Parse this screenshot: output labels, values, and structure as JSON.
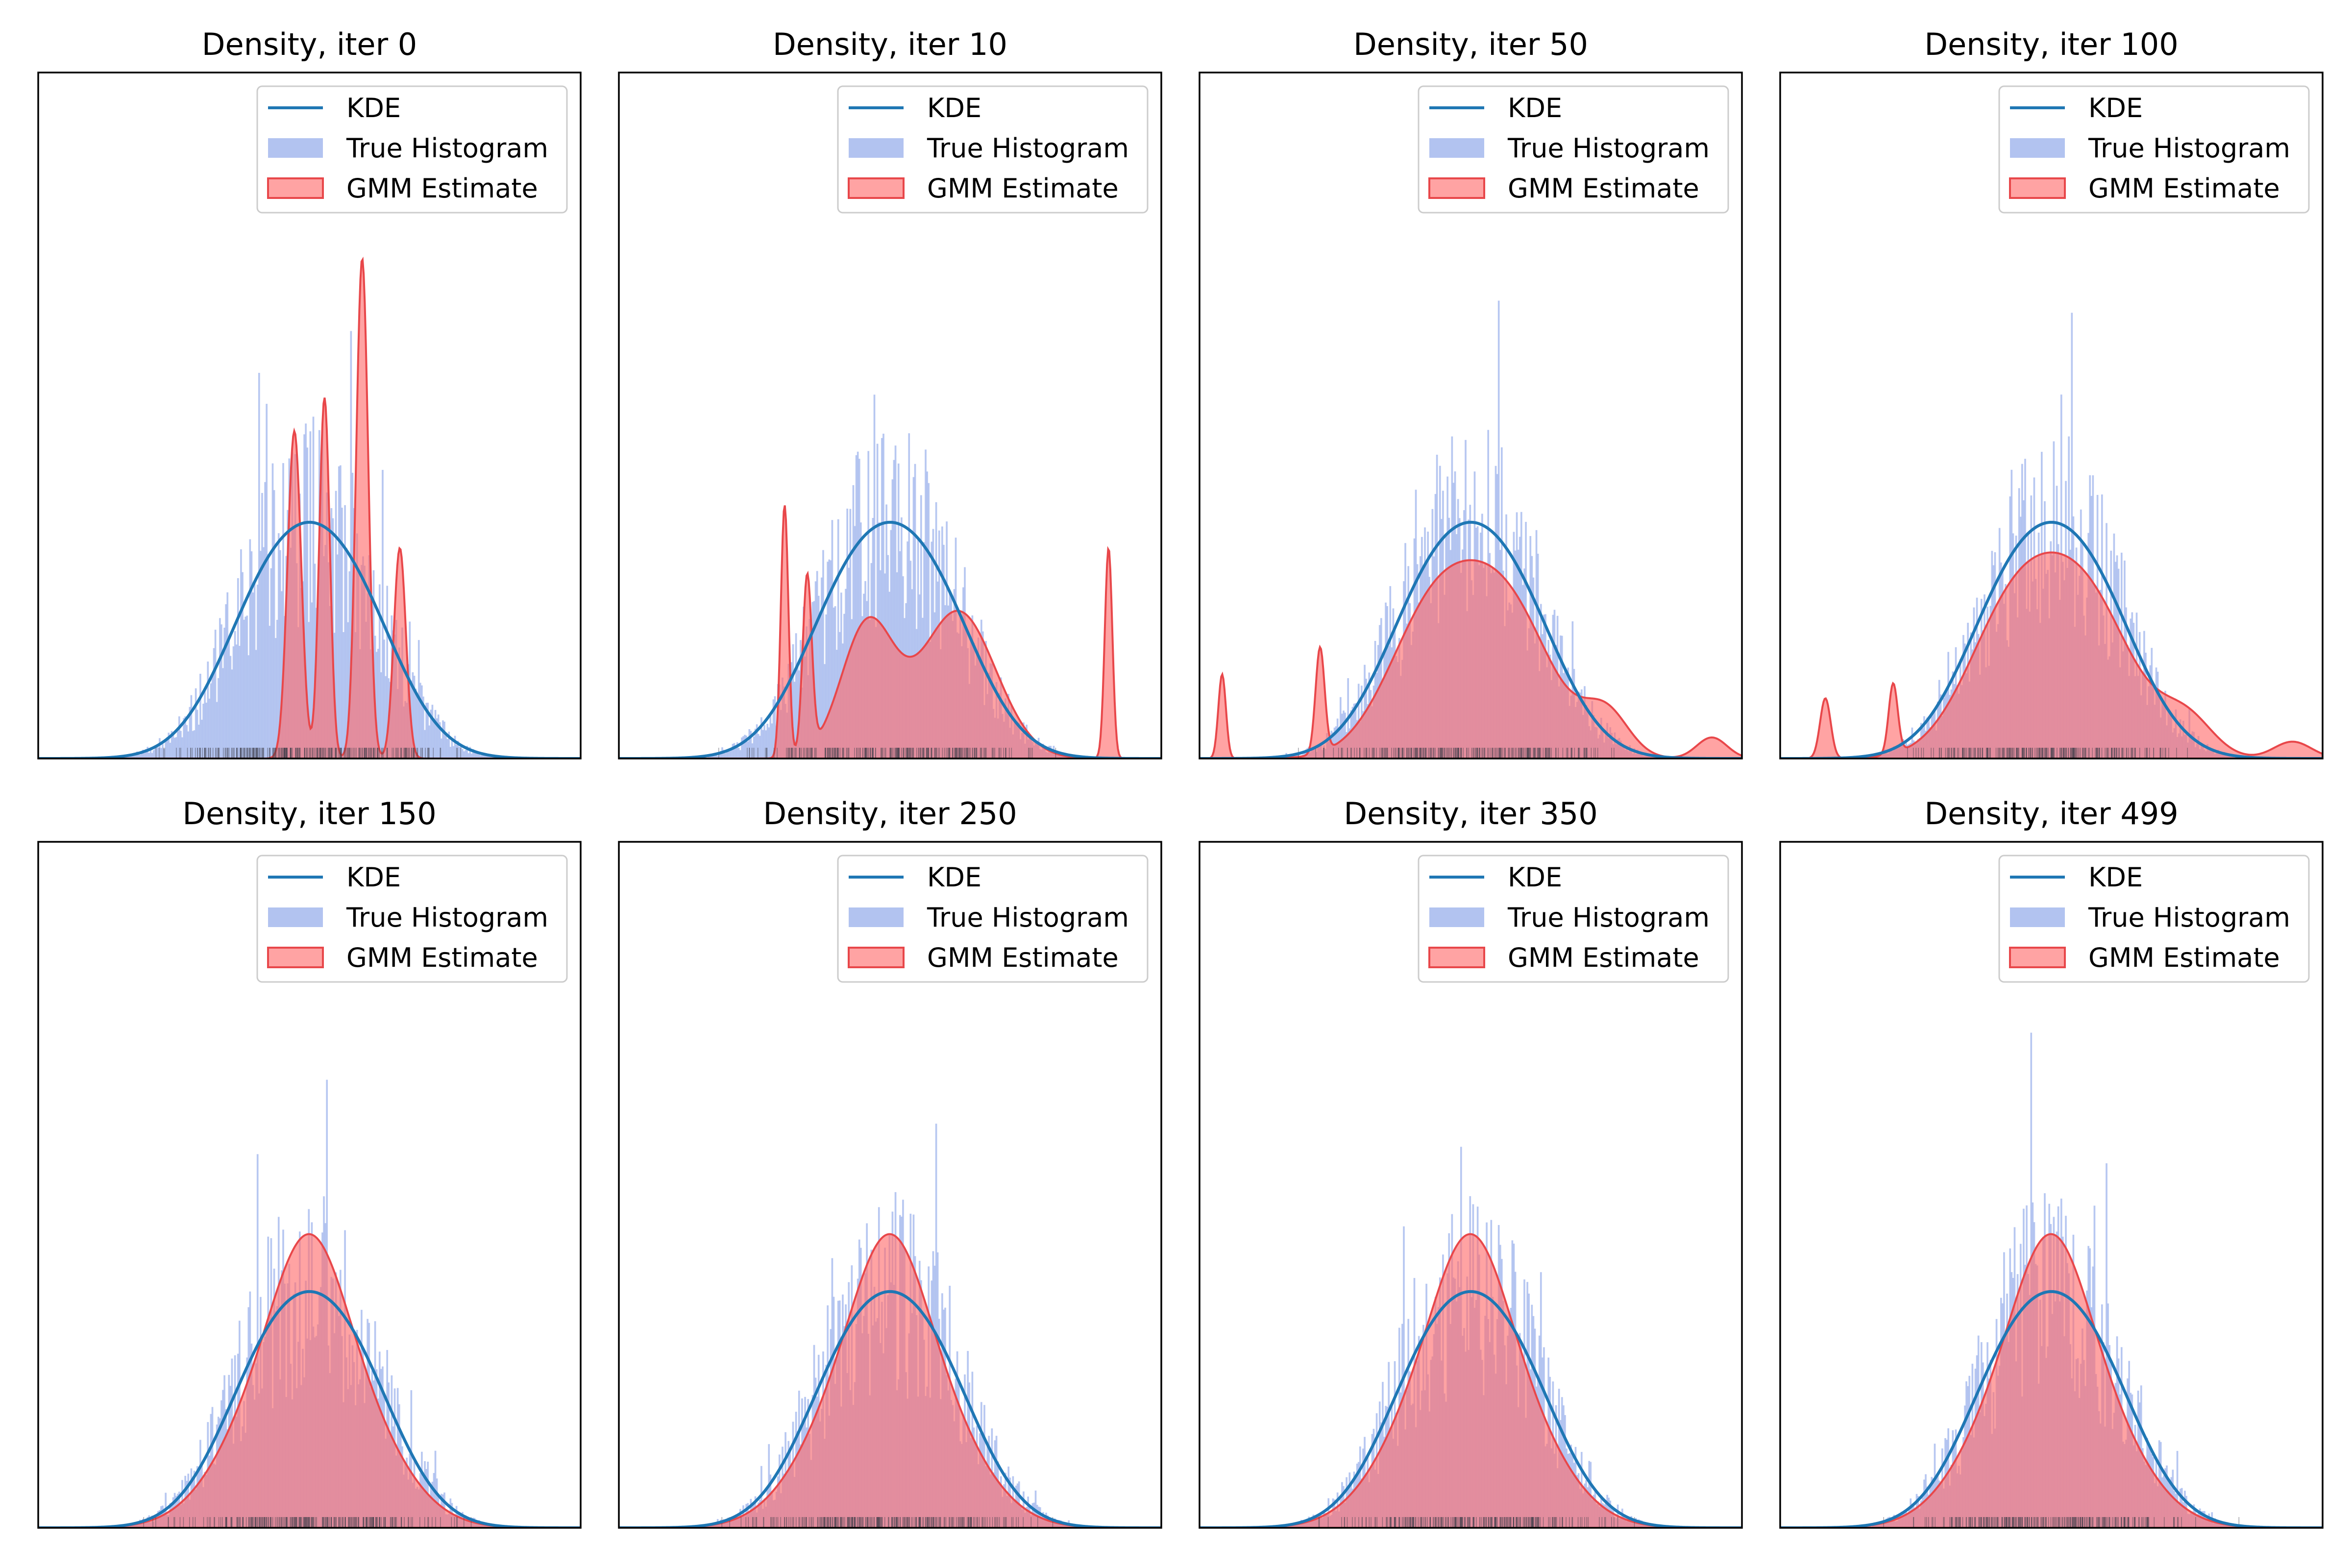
{
  "figure": {
    "colors": {
      "kde": "#1f77b4",
      "histogram": "#9fb4ec",
      "gmm": "#ff6b6b",
      "gmm_edge": "#e8474a",
      "rug": "#3d3d4a",
      "frame": "#000000"
    }
  },
  "legend": {
    "kde_label": "KDE",
    "hist_label": "True Histogram",
    "gmm_label": "GMM Estimate"
  },
  "chart_data": [
    {
      "type": "area",
      "title": "Density, iter 0",
      "xlim": [
        -3.6,
        3.6
      ],
      "ylim": [
        0,
        1.3
      ],
      "kde": {
        "mu": [
          -0.5,
          0.5
        ],
        "sigma": [
          0.68,
          0.68
        ],
        "w": [
          0.5,
          0.5
        ],
        "tail_sigma": 1.6,
        "tail_w": 0.0
      },
      "gmm": {
        "mu": [
          -0.2,
          0.2,
          0.7,
          1.2
        ],
        "sigma": [
          0.09,
          0.07,
          0.08,
          0.08
        ],
        "w": [
          0.14,
          0.12,
          0.19,
          0.08
        ]
      }
    },
    {
      "type": "area",
      "title": "Density, iter 10",
      "xlim": [
        -3.6,
        3.6
      ],
      "ylim": [
        0,
        1.3
      ],
      "kde": {
        "mu": [
          -0.5,
          0.5
        ],
        "sigma": [
          0.68,
          0.68
        ],
        "w": [
          0.5,
          0.5
        ],
        "tail_sigma": 1.6,
        "tail_w": 0.0
      },
      "gmm": {
        "mu": [
          -1.4,
          -1.1,
          -0.3,
          0.9,
          2.9
        ],
        "sigma": [
          0.05,
          0.06,
          0.35,
          0.5,
          0.05
        ],
        "w": [
          0.06,
          0.05,
          0.22,
          0.35,
          0.05
        ]
      }
    },
    {
      "type": "area",
      "title": "Density, iter 50",
      "xlim": [
        -3.6,
        3.6
      ],
      "ylim": [
        0,
        1.3
      ],
      "kde": {
        "mu": [
          -0.5,
          0.5
        ],
        "sigma": [
          0.68,
          0.68
        ],
        "w": [
          0.5,
          0.5
        ],
        "tail_sigma": 1.6,
        "tail_w": 0.0
      },
      "gmm": {
        "mu": [
          -3.3,
          -2.0,
          -0.5,
          0.5,
          1.8,
          3.2
        ],
        "sigma": [
          0.05,
          0.06,
          0.6,
          0.6,
          0.3,
          0.2
        ],
        "w": [
          0.02,
          0.03,
          0.4,
          0.4,
          0.06,
          0.02
        ]
      }
    },
    {
      "type": "area",
      "title": "Density, iter 100",
      "xlim": [
        -3.6,
        3.6
      ],
      "ylim": [
        0,
        1.3
      ],
      "kde": {
        "mu": [
          -0.5,
          0.5
        ],
        "sigma": [
          0.68,
          0.68
        ],
        "w": [
          0.5,
          0.5
        ],
        "tail_sigma": 1.6,
        "tail_w": 0.0
      },
      "gmm": {
        "mu": [
          -3.0,
          -2.1,
          -0.5,
          0.5,
          1.8,
          3.2
        ],
        "sigma": [
          0.07,
          0.06,
          0.62,
          0.62,
          0.35,
          0.25
        ],
        "w": [
          0.02,
          0.02,
          0.42,
          0.42,
          0.06,
          0.02
        ]
      }
    },
    {
      "type": "area",
      "title": "Density, iter 150",
      "xlim": [
        -3.6,
        3.6
      ],
      "ylim": [
        0,
        1.3
      ],
      "kde": {
        "mu": [
          -0.5,
          0.5
        ],
        "sigma": [
          0.68,
          0.68
        ],
        "w": [
          0.5,
          0.5
        ],
        "tail_sigma": 1.6,
        "tail_w": 0.0
      },
      "gmm": {
        "mu": [
          -0.45,
          0.0,
          0.45
        ],
        "sigma": [
          0.7,
          0.45,
          0.7
        ],
        "w": [
          0.4,
          0.22,
          0.38
        ]
      }
    },
    {
      "type": "area",
      "title": "Density, iter 250",
      "xlim": [
        -3.6,
        3.6
      ],
      "ylim": [
        0,
        1.3
      ],
      "kde": {
        "mu": [
          -0.5,
          0.5
        ],
        "sigma": [
          0.68,
          0.68
        ],
        "w": [
          0.5,
          0.5
        ],
        "tail_sigma": 1.6,
        "tail_w": 0.0
      },
      "gmm": {
        "mu": [
          -0.45,
          0.0,
          0.45
        ],
        "sigma": [
          0.7,
          0.45,
          0.7
        ],
        "w": [
          0.4,
          0.22,
          0.38
        ]
      }
    },
    {
      "type": "area",
      "title": "Density, iter 350",
      "xlim": [
        -3.6,
        3.6
      ],
      "ylim": [
        0,
        1.3
      ],
      "kde": {
        "mu": [
          -0.5,
          0.5
        ],
        "sigma": [
          0.68,
          0.68
        ],
        "w": [
          0.5,
          0.5
        ],
        "tail_sigma": 1.6,
        "tail_w": 0.0
      },
      "gmm": {
        "mu": [
          -0.45,
          0.0,
          0.45
        ],
        "sigma": [
          0.7,
          0.45,
          0.7
        ],
        "w": [
          0.4,
          0.22,
          0.38
        ]
      }
    },
    {
      "type": "area",
      "title": "Density, iter 499",
      "xlim": [
        -3.6,
        3.6
      ],
      "ylim": [
        0,
        1.3
      ],
      "kde": {
        "mu": [
          -0.5,
          0.5
        ],
        "sigma": [
          0.68,
          0.68
        ],
        "w": [
          0.5,
          0.5
        ],
        "tail_sigma": 1.6,
        "tail_w": 0.0
      },
      "gmm": {
        "mu": [
          -0.45,
          0.0,
          0.45
        ],
        "sigma": [
          0.7,
          0.45,
          0.7
        ],
        "w": [
          0.4,
          0.22,
          0.38
        ]
      }
    }
  ]
}
